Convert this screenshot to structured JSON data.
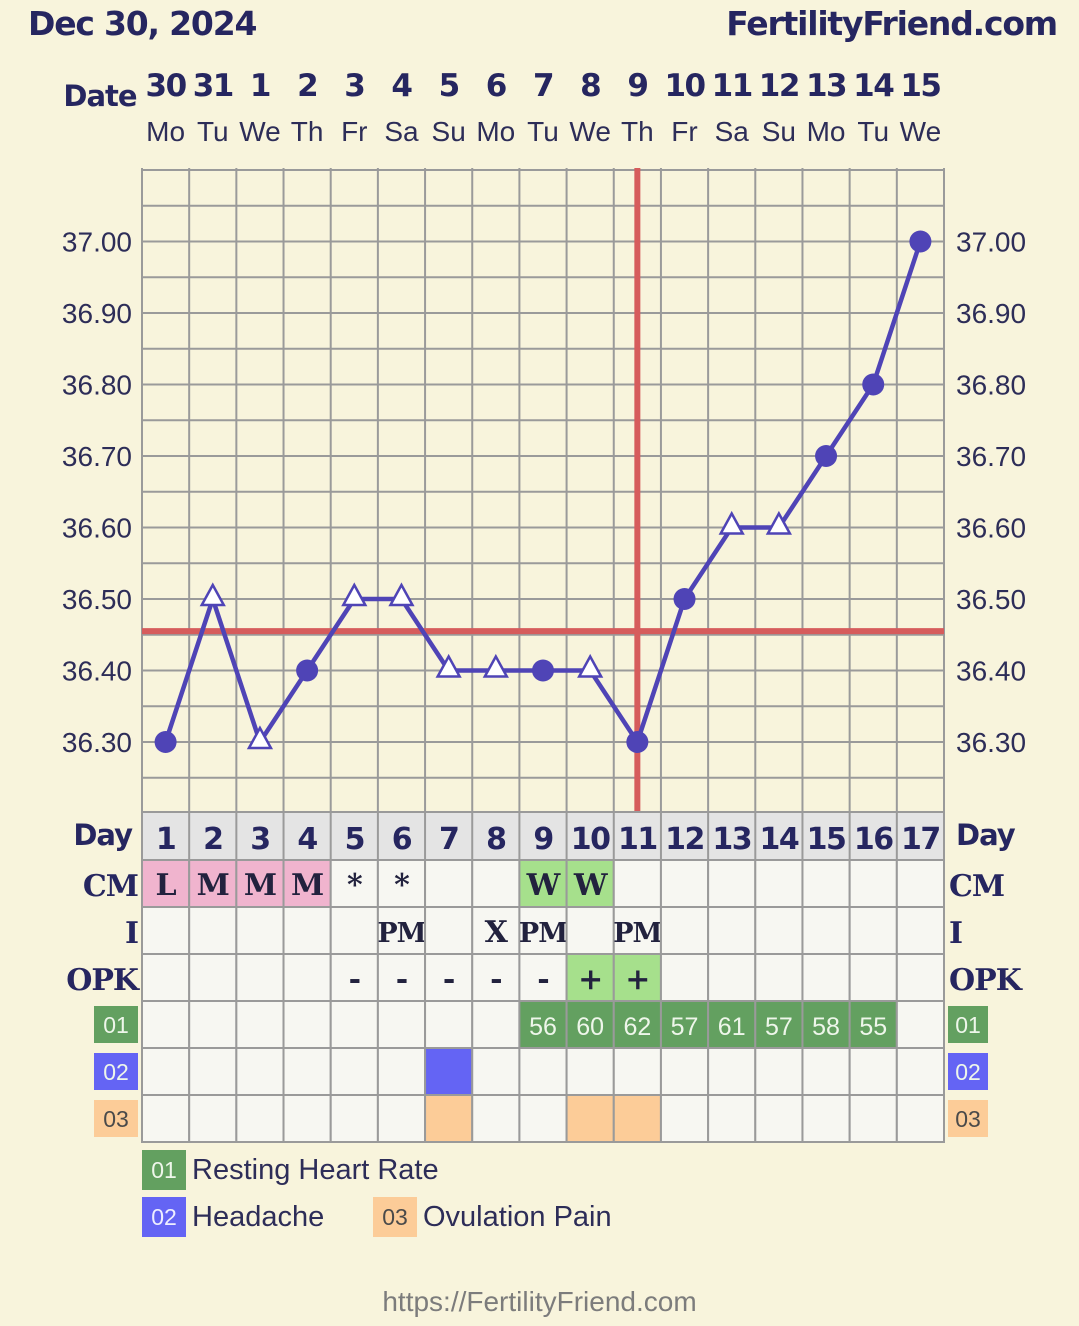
{
  "header": {
    "date": "Dec 30, 2024",
    "site": "FertilityFriend.com"
  },
  "chart_data": {
    "type": "line",
    "date_label": "Date",
    "dates": [
      "30",
      "31",
      "1",
      "2",
      "3",
      "4",
      "5",
      "6",
      "7",
      "8",
      "9",
      "10",
      "11",
      "12",
      "13",
      "14",
      "15"
    ],
    "weekdays": [
      "Mo",
      "Tu",
      "We",
      "Th",
      "Fr",
      "Sa",
      "Su",
      "Mo",
      "Tu",
      "We",
      "Th",
      "Fr",
      "Sa",
      "Su",
      "Mo",
      "Tu",
      "We"
    ],
    "y_ticks": [
      "36.30",
      "36.40",
      "36.50",
      "36.60",
      "36.70",
      "36.80",
      "36.90",
      "37.00"
    ],
    "ylim": [
      36.21,
      37.1
    ],
    "temperatures": [
      36.3,
      36.5,
      36.3,
      36.4,
      36.5,
      36.5,
      36.4,
      36.4,
      36.4,
      36.4,
      36.3,
      36.5,
      36.6,
      36.6,
      36.7,
      36.8,
      37.0
    ],
    "markers": [
      "circle",
      "triangle",
      "triangle",
      "circle",
      "triangle",
      "triangle",
      "triangle",
      "triangle",
      "circle",
      "triangle",
      "circle",
      "circle",
      "triangle",
      "triangle",
      "circle",
      "circle",
      "circle"
    ],
    "coverline": 36.455,
    "ovulation_day": 11,
    "day_label": "Day",
    "days": [
      "1",
      "2",
      "3",
      "4",
      "5",
      "6",
      "7",
      "8",
      "9",
      "10",
      "11",
      "12",
      "13",
      "14",
      "15",
      "16",
      "17"
    ],
    "rows": [
      {
        "label": "CM",
        "values": [
          "L",
          "M",
          "M",
          "M",
          "*",
          "*",
          "",
          "",
          "W",
          "W",
          "",
          "",
          "",
          "",
          "",
          "",
          ""
        ],
        "colors": [
          "#f0b4ce",
          "#f0b4ce",
          "#f0b4ce",
          "#f0b4ce",
          "",
          "",
          "",
          "",
          "#a6e08c",
          "#a6e08c",
          "",
          "",
          "",
          "",
          "",
          "",
          ""
        ]
      },
      {
        "label": "I",
        "values": [
          "",
          "",
          "",
          "",
          "",
          "PM",
          "",
          "X",
          "PM",
          "",
          "PM",
          "",
          "",
          "",
          "",
          "",
          ""
        ],
        "colors": [
          "",
          "",
          "",
          "",
          "",
          "",
          "",
          "",
          "",
          "",
          "",
          "",
          "",
          "",
          "",
          "",
          ""
        ]
      },
      {
        "label": "OPK",
        "values": [
          "",
          "",
          "",
          "",
          "-",
          "-",
          "-",
          "-",
          "-",
          "+",
          "+",
          "",
          "",
          "",
          "",
          "",
          ""
        ],
        "colors": [
          "",
          "",
          "",
          "",
          "",
          "",
          "",
          "",
          "",
          "#a6e08c",
          "#a6e08c",
          "",
          "",
          "",
          "",
          "",
          ""
        ]
      },
      {
        "label": "01",
        "values": [
          "",
          "",
          "",
          "",
          "",
          "",
          "",
          "",
          "56",
          "60",
          "62",
          "57",
          "61",
          "57",
          "58",
          "55",
          ""
        ],
        "colors": [
          "",
          "",
          "",
          "",
          "",
          "",
          "",
          "",
          "#63a060",
          "#63a060",
          "#63a060",
          "#63a060",
          "#63a060",
          "#63a060",
          "#63a060",
          "#63a060",
          ""
        ]
      },
      {
        "label": "02",
        "values": [
          "",
          "",
          "",
          "",
          "",
          "",
          "",
          "",
          "",
          "",
          "",
          "",
          "",
          "",
          "",
          "",
          ""
        ],
        "colors": [
          "",
          "",
          "",
          "",
          "",
          "",
          "#6464f4",
          "",
          "",
          "",
          "",
          "",
          "",
          "",
          "",
          "",
          ""
        ]
      },
      {
        "label": "03",
        "values": [
          "",
          "",
          "",
          "",
          "",
          "",
          "",
          "",
          "",
          "",
          "",
          "",
          "",
          "",
          "",
          "",
          ""
        ],
        "colors": [
          "",
          "",
          "",
          "",
          "",
          "",
          "#fccc98",
          "",
          "",
          "#fccc98",
          "#fccc98",
          "",
          "",
          "",
          "",
          "",
          ""
        ]
      }
    ]
  },
  "legend": [
    {
      "code": "01",
      "label": "Resting Heart Rate"
    },
    {
      "code": "02",
      "label": "Headache"
    },
    {
      "code": "03",
      "label": "Ovulation Pain"
    }
  ],
  "colors": {
    "line": "#4f44b6",
    "coverline": "#d65c5c",
    "badge_01": "#63a060",
    "badge_02": "#6464f4",
    "badge_03": "#fccc98",
    "grid": "#9a9a9a"
  },
  "footer": "https://FertilityFriend.com"
}
